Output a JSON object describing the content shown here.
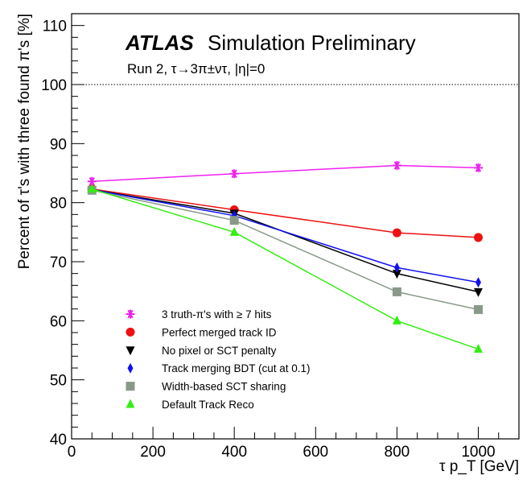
{
  "chart_data": {
    "type": "line",
    "experiment_label": "ATLAS",
    "header_label": "Simulation Preliminary",
    "subtitle": "Run 2, τ→3π±ντ, |η|=0",
    "xlabel": "τ p_T [GeV]",
    "ylabel": "Percent of τ's with three found π's [%]",
    "xlim": [
      0,
      1100
    ],
    "ylim": [
      40,
      112
    ],
    "xticks": [
      0,
      200,
      400,
      600,
      800,
      1000
    ],
    "yticks": [
      40,
      50,
      60,
      70,
      80,
      90,
      100,
      110
    ],
    "reference_line": {
      "y": 100,
      "style": "dotted"
    },
    "x": [
      50,
      400,
      800,
      1000
    ],
    "legend_position": "bottom-left",
    "series": [
      {
        "name": "3 truth-π's with ≥ 7 hits",
        "marker": "star",
        "color": "#ee22ee",
        "values": [
          83.6,
          84.9,
          86.3,
          85.9
        ]
      },
      {
        "name": "Perfect merged track ID",
        "marker": "circle",
        "color": "#ee1111",
        "values": [
          82.3,
          78.8,
          74.9,
          74.1
        ]
      },
      {
        "name": "No pixel or SCT penalty",
        "marker": "triangle-down",
        "color": "#000000",
        "values": [
          82.2,
          78.2,
          68.0,
          64.9
        ]
      },
      {
        "name": "Track merging BDT (cut at 0.1)",
        "marker": "diamond",
        "color": "#1111ee",
        "values": [
          82.2,
          77.8,
          69.0,
          66.5
        ]
      },
      {
        "name": "Width-based SCT sharing",
        "marker": "square",
        "color": "#889988",
        "values": [
          82.1,
          77.0,
          64.9,
          61.9
        ]
      },
      {
        "name": "Default Track Reco",
        "marker": "triangle-up",
        "color": "#33ee11",
        "values": [
          82.3,
          75.0,
          60.0,
          55.2
        ]
      }
    ]
  }
}
